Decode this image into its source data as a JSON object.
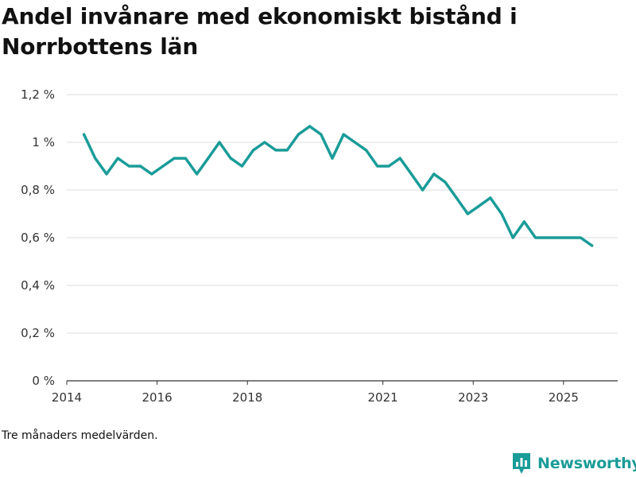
{
  "header": {
    "title": "Andel invånare med ekonomiskt bistånd i Norrbottens län"
  },
  "footnote": "Tre månaders medelvärden.",
  "brand": {
    "name": "Newsworthy",
    "color": "#1a9c98"
  },
  "chart_data": {
    "type": "line",
    "title": "Andel invånare med ekonomiskt bistånd i Norrbottens län",
    "xlabel": "",
    "ylabel": "",
    "ylim": [
      0,
      1.2
    ],
    "xlim": [
      2014.0,
      2026.2
    ],
    "grid": true,
    "line_color": "#1a9c98",
    "y_ticks": [
      {
        "value": 0,
        "label": "0 %"
      },
      {
        "value": 0.2,
        "label": "0,2 %"
      },
      {
        "value": 0.4,
        "label": "0,4 %"
      },
      {
        "value": 0.6,
        "label": "0,6 %"
      },
      {
        "value": 0.8,
        "label": "0,8 %"
      },
      {
        "value": 1.0,
        "label": "1 %"
      },
      {
        "value": 1.2,
        "label": "1,2 %"
      }
    ],
    "x_ticks": [
      {
        "value": 2014.0,
        "label": "2014"
      },
      {
        "value": 2016.0,
        "label": "2016"
      },
      {
        "value": 2018.0,
        "label": "2018"
      },
      {
        "value": 2021.0,
        "label": "2021"
      },
      {
        "value": 2023.0,
        "label": "2023"
      },
      {
        "value": 2025.0,
        "label": "2025"
      }
    ],
    "series": [
      {
        "name": "Andel",
        "x": [
          2014.38,
          2014.63,
          2014.88,
          2015.13,
          2015.38,
          2015.63,
          2015.88,
          2016.13,
          2016.38,
          2016.63,
          2016.88,
          2017.13,
          2017.38,
          2017.63,
          2017.88,
          2018.13,
          2018.38,
          2018.63,
          2018.88,
          2019.13,
          2019.38,
          2019.63,
          2019.88,
          2020.13,
          2020.38,
          2020.63,
          2020.88,
          2021.13,
          2021.38,
          2021.63,
          2021.88,
          2022.13,
          2022.38,
          2022.63,
          2022.88,
          2023.13,
          2023.38,
          2023.63,
          2023.88,
          2024.13,
          2024.38,
          2024.63,
          2024.88,
          2025.13,
          2025.38,
          2025.63
        ],
        "values": [
          1.033,
          0.933,
          0.867,
          0.933,
          0.9,
          0.9,
          0.867,
          0.9,
          0.933,
          0.933,
          0.867,
          0.933,
          1.0,
          0.933,
          0.9,
          0.967,
          1.0,
          0.967,
          0.967,
          1.033,
          1.067,
          1.033,
          0.933,
          1.033,
          1.0,
          0.967,
          0.9,
          0.9,
          0.933,
          0.867,
          0.8,
          0.867,
          0.833,
          0.767,
          0.7,
          0.733,
          0.767,
          0.7,
          0.6,
          0.667,
          0.6,
          0.6,
          0.6,
          0.6,
          0.6,
          0.567
        ]
      }
    ]
  }
}
